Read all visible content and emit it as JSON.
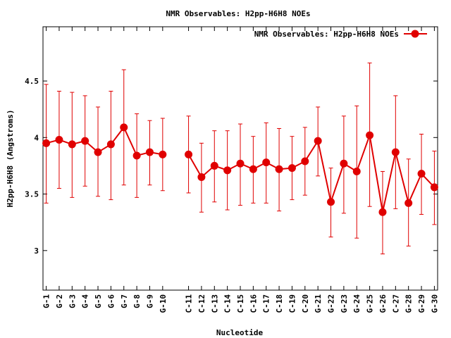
{
  "chart_data": {
    "type": "line",
    "title": "NMR Observables: H2pp-H6H8 NOEs",
    "xlabel": "Nucleotide",
    "ylabel": "H2pp-H6H8 (Angstroms)",
    "ylim": [
      2.65,
      4.98
    ],
    "yticks": [
      3,
      3.5,
      4,
      4.5
    ],
    "ytick_labels": [
      "3",
      "3.5",
      "4",
      "4.5"
    ],
    "grid": false,
    "legend_position": "top-right",
    "series": [
      {
        "name": "NMR Observables: H2pp-H6H8 NOEs",
        "color": "#e00000",
        "points": [
          {
            "x": 1,
            "label": "G-1",
            "y": 3.95,
            "low": 3.42,
            "high": 4.47
          },
          {
            "x": 2,
            "label": "G-2",
            "y": 3.98,
            "low": 3.55,
            "high": 4.41
          },
          {
            "x": 3,
            "label": "G-3",
            "y": 3.94,
            "low": 3.47,
            "high": 4.4
          },
          {
            "x": 4,
            "label": "G-4",
            "y": 3.97,
            "low": 3.57,
            "high": 4.37
          },
          {
            "x": 5,
            "label": "G-5",
            "y": 3.87,
            "low": 3.48,
            "high": 4.27
          },
          {
            "x": 6,
            "label": "G-6",
            "y": 3.94,
            "low": 3.45,
            "high": 4.41
          },
          {
            "x": 7,
            "label": "G-7",
            "y": 4.09,
            "low": 3.58,
            "high": 4.6
          },
          {
            "x": 8,
            "label": "G-8",
            "y": 3.84,
            "low": 3.47,
            "high": 4.21
          },
          {
            "x": 9,
            "label": "G-9",
            "y": 3.87,
            "low": 3.58,
            "high": 4.15
          },
          {
            "x": 10,
            "label": "G-10",
            "y": 3.85,
            "low": 3.53,
            "high": 4.17
          },
          {
            "x": 12,
            "label": "C-11",
            "y": 3.85,
            "low": 3.51,
            "high": 4.19
          },
          {
            "x": 13,
            "label": "C-12",
            "y": 3.65,
            "low": 3.34,
            "high": 3.95
          },
          {
            "x": 14,
            "label": "C-13",
            "y": 3.75,
            "low": 3.43,
            "high": 4.06
          },
          {
            "x": 15,
            "label": "C-14",
            "y": 3.71,
            "low": 3.36,
            "high": 4.06
          },
          {
            "x": 16,
            "label": "C-15",
            "y": 3.77,
            "low": 3.4,
            "high": 4.12
          },
          {
            "x": 17,
            "label": "C-16",
            "y": 3.72,
            "low": 3.42,
            "high": 4.01
          },
          {
            "x": 18,
            "label": "C-17",
            "y": 3.78,
            "low": 3.42,
            "high": 4.13
          },
          {
            "x": 19,
            "label": "C-18",
            "y": 3.72,
            "low": 3.35,
            "high": 4.08
          },
          {
            "x": 20,
            "label": "C-19",
            "y": 3.73,
            "low": 3.45,
            "high": 4.01
          },
          {
            "x": 21,
            "label": "C-20",
            "y": 3.79,
            "low": 3.49,
            "high": 4.09
          },
          {
            "x": 22,
            "label": "G-21",
            "y": 3.97,
            "low": 3.66,
            "high": 4.27
          },
          {
            "x": 23,
            "label": "G-22",
            "y": 3.43,
            "low": 3.12,
            "high": 3.73
          },
          {
            "x": 24,
            "label": "G-23",
            "y": 3.77,
            "low": 3.33,
            "high": 4.19
          },
          {
            "x": 25,
            "label": "G-24",
            "y": 3.7,
            "low": 3.11,
            "high": 4.28
          },
          {
            "x": 26,
            "label": "G-25",
            "y": 4.02,
            "low": 3.39,
            "high": 4.66
          },
          {
            "x": 27,
            "label": "G-26",
            "y": 3.34,
            "low": 2.97,
            "high": 3.7
          },
          {
            "x": 28,
            "label": "C-27",
            "y": 3.87,
            "low": 3.37,
            "high": 4.37
          },
          {
            "x": 29,
            "label": "G-28",
            "y": 3.42,
            "low": 3.04,
            "high": 3.81
          },
          {
            "x": 30,
            "label": "G-29",
            "y": 3.68,
            "low": 3.32,
            "high": 4.03
          },
          {
            "x": 31,
            "label": "G-30",
            "y": 3.56,
            "low": 3.23,
            "high": 3.88
          }
        ]
      }
    ]
  }
}
